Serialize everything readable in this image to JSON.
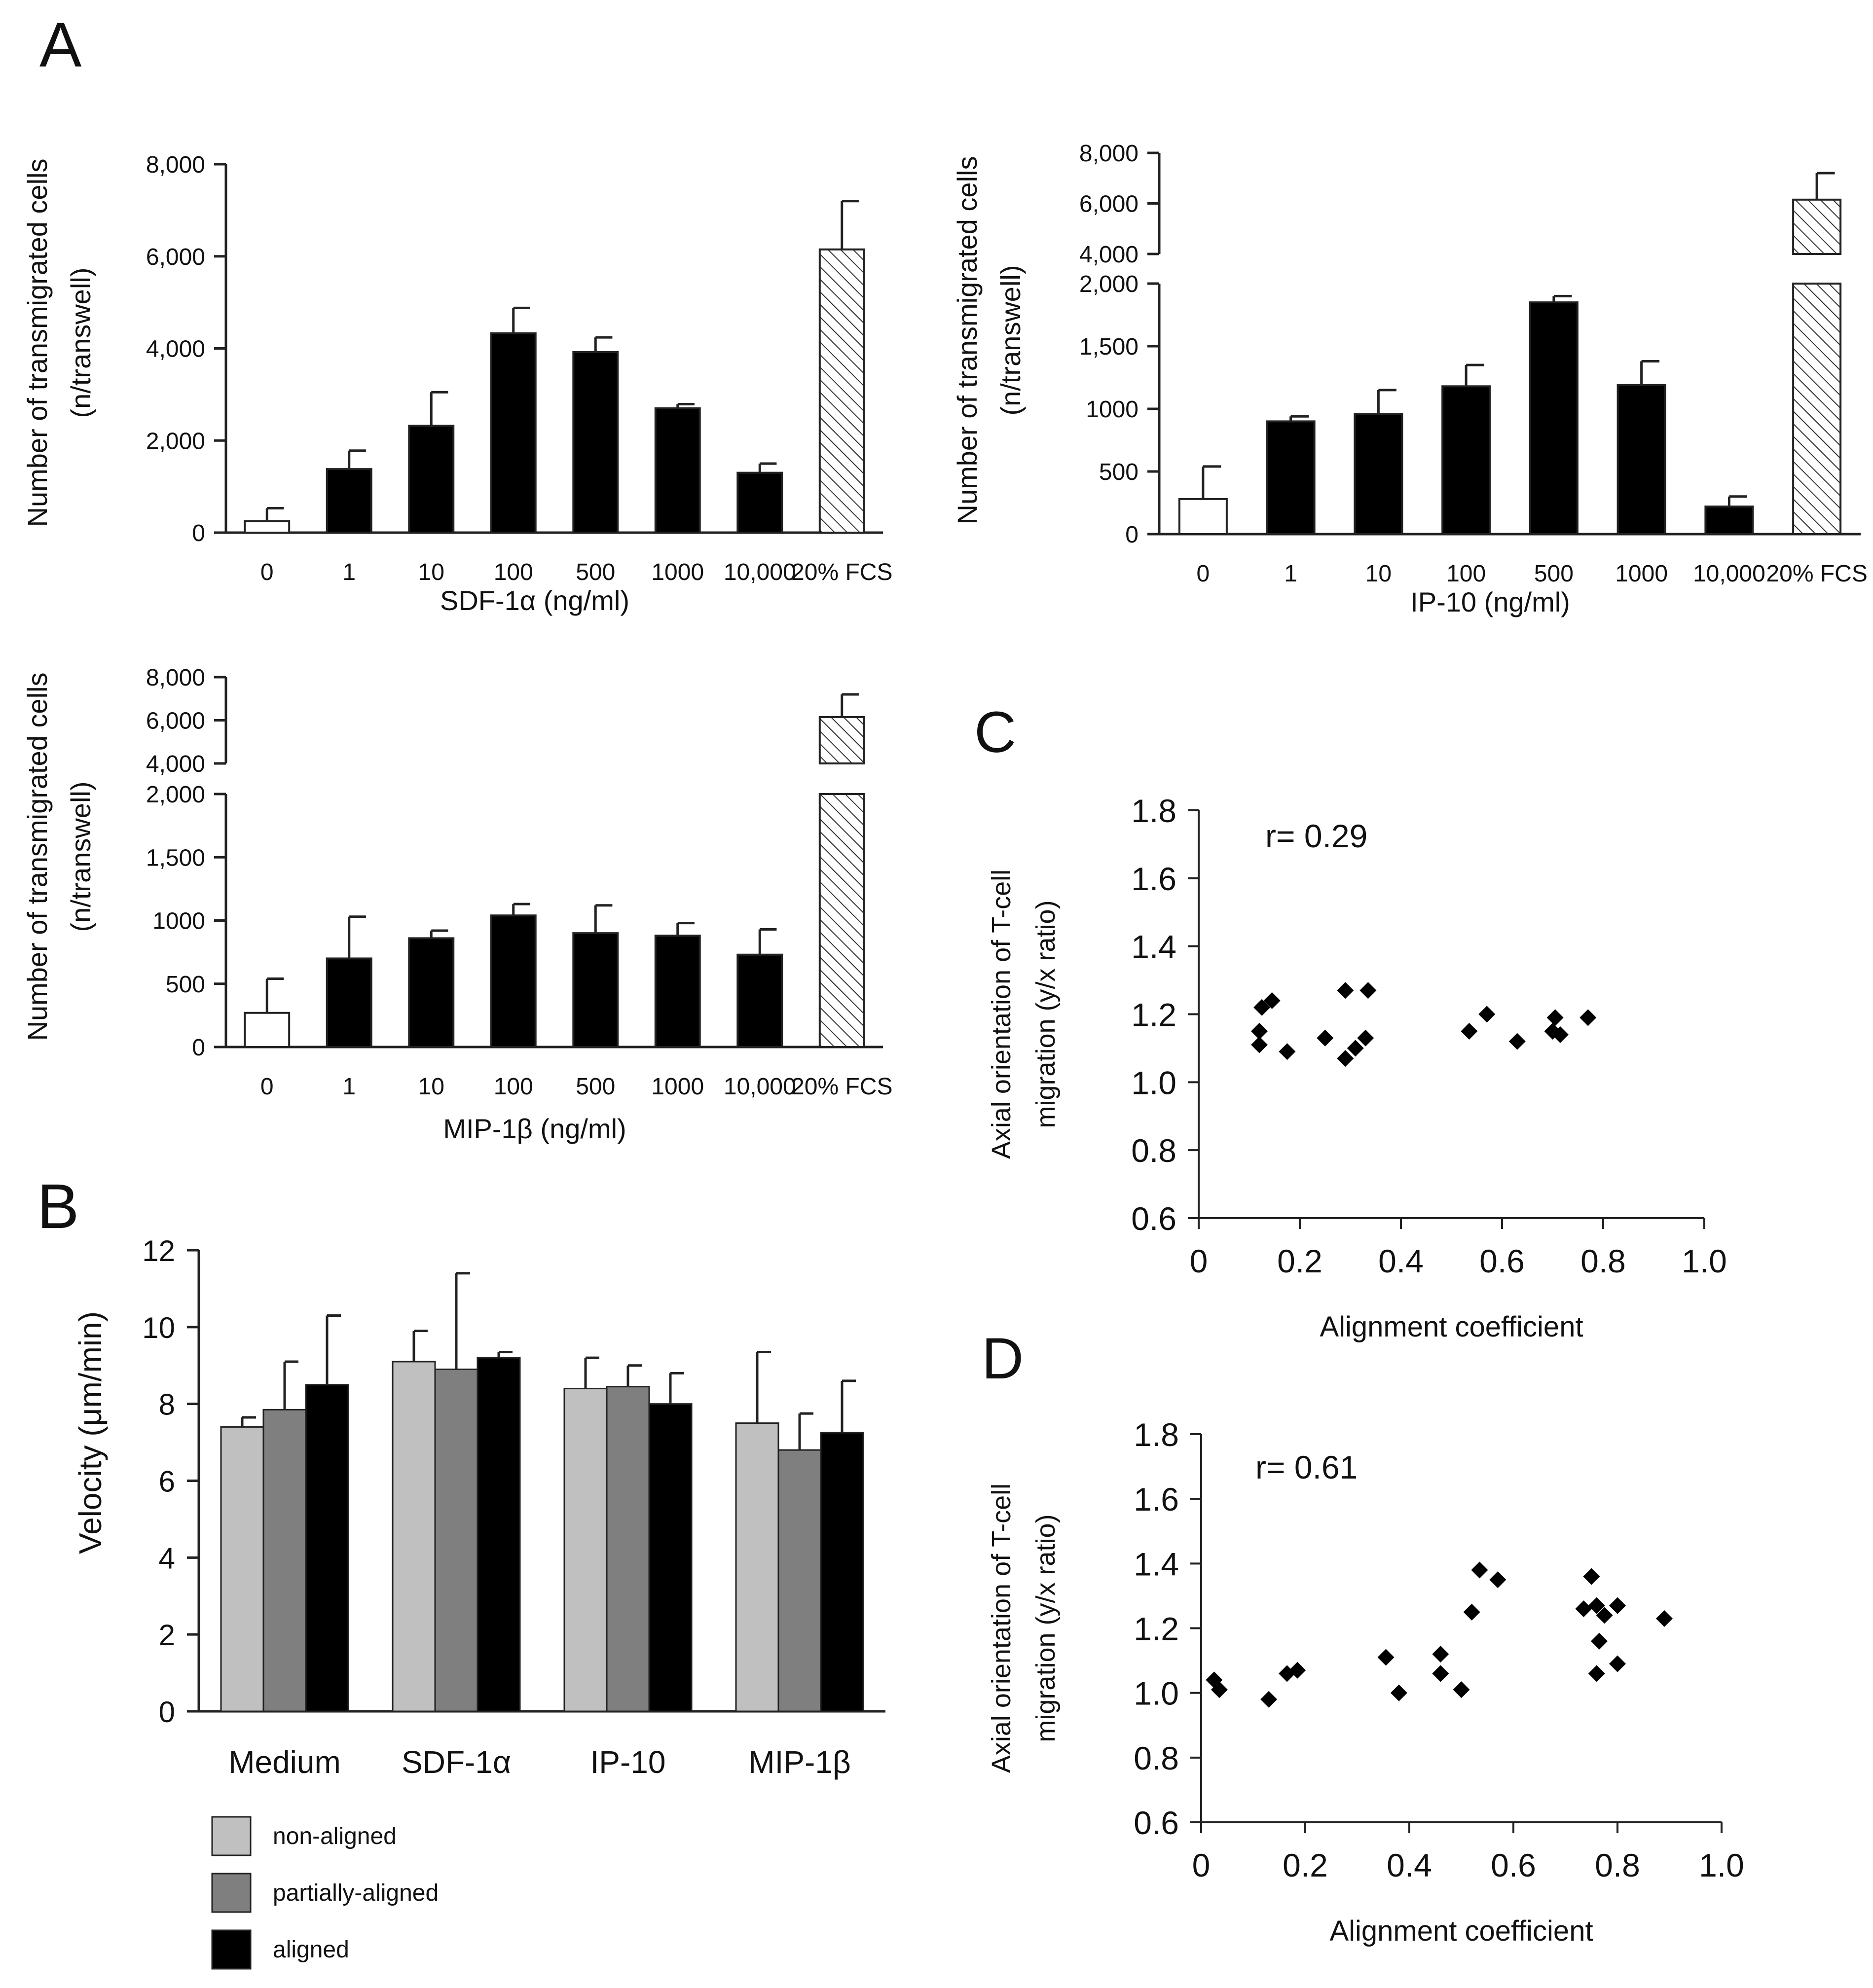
{
  "panels": {
    "A": "A",
    "B": "B",
    "C": "C",
    "D": "D"
  },
  "chart_data": [
    {
      "id": "sdf",
      "type": "bar",
      "title": "",
      "xlabel": "SDF-1α (ng/ml)",
      "ylabel_lines": [
        "Number of transmigrated cells",
        "(n/transwell)"
      ],
      "categories": [
        "0",
        "1",
        "10",
        "100",
        "500",
        "1000",
        "10,000",
        "20% FCS"
      ],
      "values": [
        250,
        1380,
        2320,
        4330,
        3920,
        2700,
        1300,
        6150
      ],
      "errors": [
        280,
        400,
        730,
        550,
        320,
        90,
        200,
        1050
      ],
      "bar_styles": [
        "open",
        "solid",
        "solid",
        "solid",
        "solid",
        "solid",
        "solid",
        "hatched"
      ],
      "yticks": [
        "0",
        "2,000",
        "4,000",
        "6,000",
        "8,000"
      ],
      "ylim": [
        0,
        8000
      ]
    },
    {
      "id": "ip10",
      "type": "bar",
      "broken_axis": true,
      "xlabel": "IP-10 (ng/ml)",
      "ylabel_lines": [
        "Number of transmigrated cells",
        "(n/transwell)"
      ],
      "categories": [
        "0",
        "1",
        "10",
        "100",
        "500",
        "1000",
        "10,000",
        "20% FCS"
      ],
      "values": [
        280,
        900,
        960,
        1180,
        1850,
        1190,
        220,
        6150
      ],
      "errors": [
        260,
        40,
        190,
        170,
        50,
        190,
        80,
        1050
      ],
      "bar_styles": [
        "open",
        "solid",
        "solid",
        "solid",
        "solid",
        "solid",
        "solid",
        "hatched"
      ],
      "lower_yticks": [
        "0",
        "500",
        "1000",
        "1,500",
        "2,000"
      ],
      "upper_yticks": [
        "4,000",
        "6,000",
        "8,000"
      ],
      "lower_ylim": [
        0,
        2000
      ],
      "upper_ylim": [
        4000,
        8000
      ]
    },
    {
      "id": "mip",
      "type": "bar",
      "broken_axis": true,
      "xlabel": "MIP-1β (ng/ml)",
      "ylabel_lines": [
        "Number of transmigrated cells",
        "(n/transwell)"
      ],
      "categories": [
        "0",
        "1",
        "10",
        "100",
        "500",
        "1000",
        "10,000",
        "20% FCS"
      ],
      "values": [
        270,
        700,
        860,
        1040,
        900,
        880,
        730,
        6150
      ],
      "errors": [
        270,
        330,
        60,
        90,
        220,
        100,
        200,
        1050
      ],
      "bar_styles": [
        "open",
        "solid",
        "solid",
        "solid",
        "solid",
        "solid",
        "solid",
        "hatched"
      ],
      "lower_yticks": [
        "0",
        "500",
        "1000",
        "1,500",
        "2,000"
      ],
      "upper_yticks": [
        "4,000",
        "6,000",
        "8,000"
      ],
      "lower_ylim": [
        0,
        2000
      ],
      "upper_ylim": [
        4000,
        8000
      ]
    },
    {
      "id": "velocity",
      "type": "bar",
      "ylabel": "Velocity (μm/min)",
      "categories": [
        "Medium",
        "SDF-1α",
        "IP-10",
        "MIP-1β"
      ],
      "series": [
        {
          "name": "non-aligned",
          "color": "#c0c0c0",
          "values": [
            7.4,
            9.1,
            8.4,
            7.5
          ],
          "errors": [
            0.25,
            0.8,
            0.8,
            1.85
          ]
        },
        {
          "name": "partially-aligned",
          "color": "#7f7f7f",
          "values": [
            7.85,
            8.9,
            8.45,
            6.8
          ],
          "errors": [
            1.25,
            2.5,
            0.55,
            0.95
          ]
        },
        {
          "name": "aligned",
          "color": "#000000",
          "values": [
            8.5,
            9.2,
            8.0,
            7.25
          ],
          "errors": [
            1.8,
            0.15,
            0.8,
            1.35
          ]
        }
      ],
      "yticks": [
        "0",
        "2",
        "4",
        "6",
        "8",
        "10",
        "12"
      ],
      "ylim": [
        0,
        12
      ]
    },
    {
      "id": "scatterC",
      "type": "scatter",
      "xlabel": "Alignment coefficient",
      "ylabel_lines": [
        "Axial orientation of T-cell",
        "migration (y/x ratio)"
      ],
      "annotation": "r= 0.29",
      "xticks": [
        "0",
        "0.2",
        "0.4",
        "0.6",
        "0.8",
        "1.0"
      ],
      "yticks": [
        "0.6",
        "0.8",
        "1.0",
        "1.2",
        "1.4",
        "1.6",
        "1.8"
      ],
      "xlim": [
        0,
        1.0
      ],
      "ylim": [
        0.6,
        1.8
      ],
      "points": [
        [
          0.125,
          1.22
        ],
        [
          0.145,
          1.24
        ],
        [
          0.12,
          1.15
        ],
        [
          0.12,
          1.11
        ],
        [
          0.175,
          1.09
        ],
        [
          0.25,
          1.13
        ],
        [
          0.29,
          1.27
        ],
        [
          0.335,
          1.27
        ],
        [
          0.29,
          1.07
        ],
        [
          0.31,
          1.1
        ],
        [
          0.33,
          1.13
        ],
        [
          0.535,
          1.15
        ],
        [
          0.57,
          1.2
        ],
        [
          0.63,
          1.12
        ],
        [
          0.7,
          1.15
        ],
        [
          0.705,
          1.19
        ],
        [
          0.715,
          1.14
        ],
        [
          0.77,
          1.19
        ]
      ]
    },
    {
      "id": "scatterD",
      "type": "scatter",
      "xlabel": "Alignment coefficient",
      "ylabel_lines": [
        "Axial orientation of T-cell",
        "migration (y/x ratio)"
      ],
      "annotation": "r= 0.61",
      "xticks": [
        "0",
        "0.2",
        "0.4",
        "0.6",
        "0.8",
        "1.0"
      ],
      "yticks": [
        "0.6",
        "0.8",
        "1.0",
        "1.2",
        "1.4",
        "1.6",
        "1.8"
      ],
      "xlim": [
        0,
        1.0
      ],
      "ylim": [
        0.6,
        1.8
      ],
      "points": [
        [
          0.025,
          1.04
        ],
        [
          0.035,
          1.01
        ],
        [
          0.13,
          0.98
        ],
        [
          0.165,
          1.06
        ],
        [
          0.185,
          1.07
        ],
        [
          0.355,
          1.11
        ],
        [
          0.38,
          1.0
        ],
        [
          0.46,
          1.12
        ],
        [
          0.46,
          1.06
        ],
        [
          0.5,
          1.01
        ],
        [
          0.52,
          1.25
        ],
        [
          0.535,
          1.38
        ],
        [
          0.57,
          1.35
        ],
        [
          0.735,
          1.26
        ],
        [
          0.75,
          1.36
        ],
        [
          0.76,
          1.27
        ],
        [
          0.765,
          1.16
        ],
        [
          0.76,
          1.06
        ],
        [
          0.775,
          1.24
        ],
        [
          0.8,
          1.27
        ],
        [
          0.8,
          1.09
        ],
        [
          0.89,
          1.23
        ]
      ]
    }
  ]
}
